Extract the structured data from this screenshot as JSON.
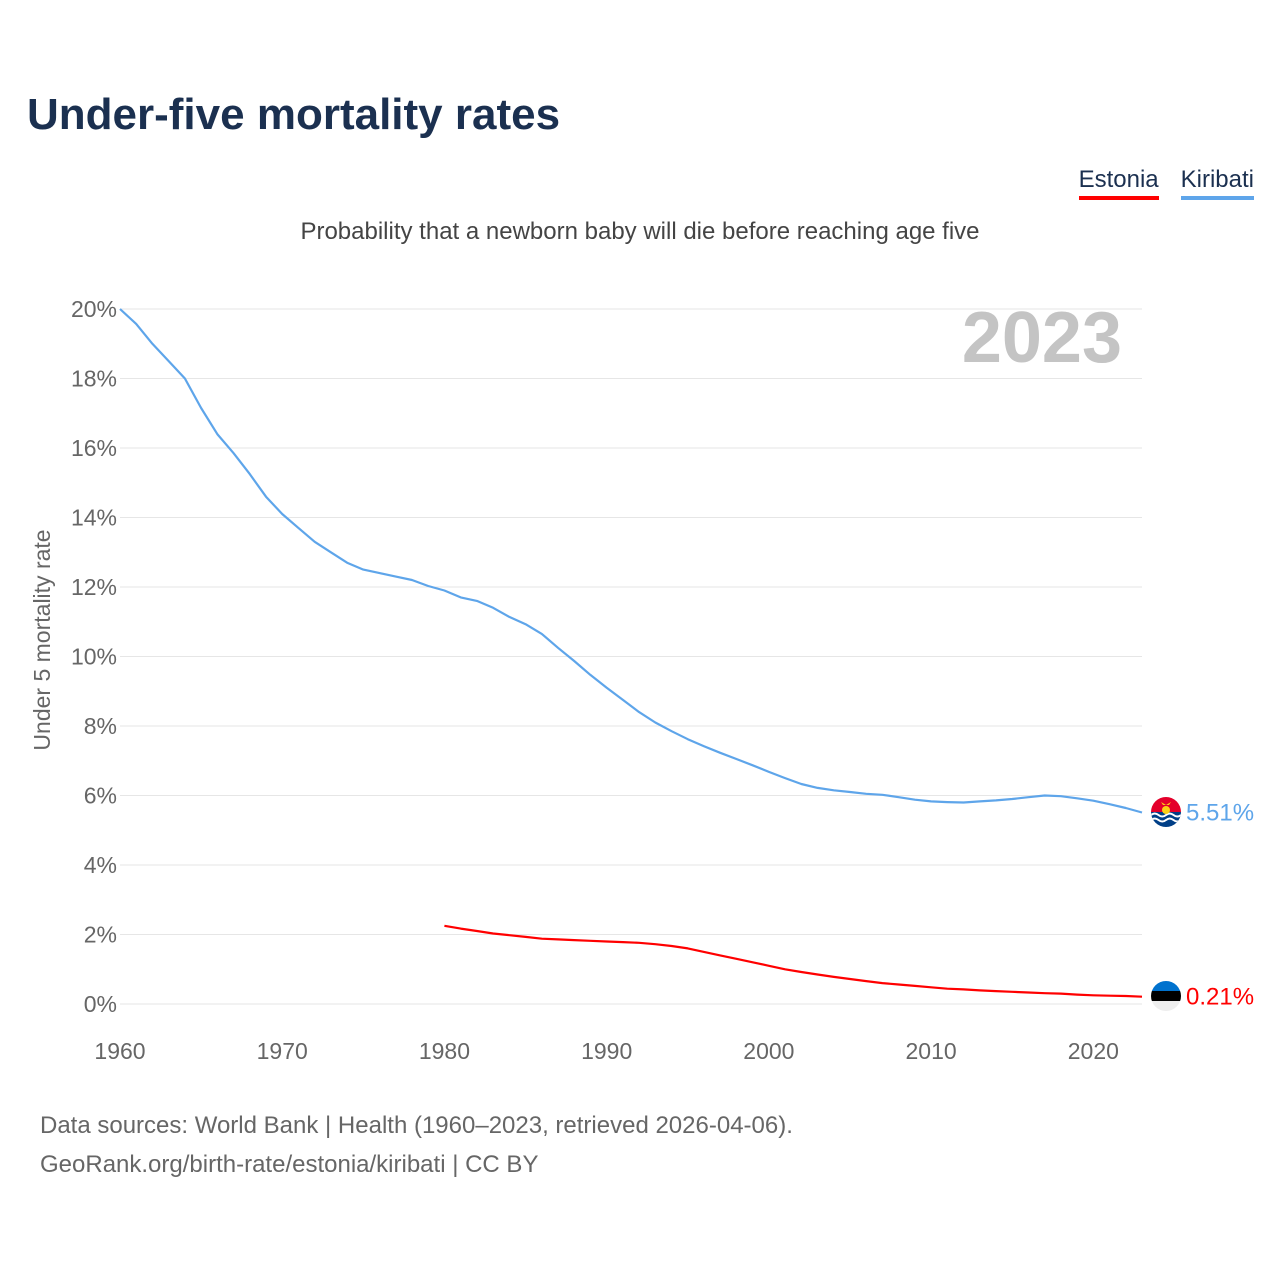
{
  "title": "Under-five mortality rates",
  "subtitle": "Probability that a newborn baby will die before reaching age five",
  "legend": [
    {
      "label": "Estonia",
      "color": "#ff0000"
    },
    {
      "label": "Kiribati",
      "color": "#5ea5ea"
    }
  ],
  "footer": {
    "line1": "Data sources: World Bank | Health (1960–2023, retrieved 2026-04-06).",
    "line2": "GeoRank.org/birth-rate/estonia/kiribati | CC BY"
  },
  "chart_data": {
    "type": "line",
    "title": "Under-five mortality rates",
    "ylabel": "Under 5 mortality rate",
    "xlabel": "",
    "xlim": [
      1960,
      2023
    ],
    "ylim": [
      0,
      20
    ],
    "grid": true,
    "year_watermark": "2023",
    "x_ticks": [
      1960,
      1970,
      1980,
      1990,
      2000,
      2010,
      2020
    ],
    "x_tick_labels": [
      "1960",
      "1970",
      "1980",
      "1990",
      "2000",
      "2010",
      "2020"
    ],
    "y_ticks": [
      0,
      2,
      4,
      6,
      8,
      10,
      12,
      14,
      16,
      18,
      20
    ],
    "y_tick_labels": [
      "0%",
      "2%",
      "4%",
      "6%",
      "8%",
      "10%",
      "12%",
      "14%",
      "16%",
      "18%",
      "20%"
    ],
    "legend_position": "top-right",
    "series": [
      {
        "name": "Kiribati",
        "color": "#5ea5ea",
        "end_label": "5.51%",
        "x_start": 1960,
        "values": [
          20.0,
          19.57,
          19.0,
          18.5,
          18.0,
          17.15,
          16.4,
          15.85,
          15.25,
          14.6,
          14.1,
          13.7,
          13.3,
          13.0,
          12.7,
          12.5,
          12.4,
          12.3,
          12.2,
          12.03,
          11.9,
          11.7,
          11.6,
          11.4,
          11.14,
          10.93,
          10.65,
          10.25,
          9.87,
          9.47,
          9.1,
          8.75,
          8.4,
          8.1,
          7.85,
          7.62,
          7.42,
          7.23,
          7.05,
          6.87,
          6.68,
          6.5,
          6.33,
          6.22,
          6.15,
          6.1,
          6.05,
          6.02,
          5.95,
          5.88,
          5.83,
          5.81,
          5.8,
          5.83,
          5.86,
          5.9,
          5.95,
          6.0,
          5.98,
          5.92,
          5.85,
          5.75,
          5.64,
          5.51
        ]
      },
      {
        "name": "Estonia",
        "color": "#ff0000",
        "end_label": "0.21%",
        "x_start": 1980,
        "values": [
          2.25,
          2.17,
          2.1,
          2.03,
          1.98,
          1.93,
          1.88,
          1.86,
          1.84,
          1.82,
          1.8,
          1.78,
          1.76,
          1.72,
          1.67,
          1.6,
          1.5,
          1.4,
          1.3,
          1.2,
          1.1,
          1.0,
          0.92,
          0.85,
          0.78,
          0.72,
          0.66,
          0.6,
          0.56,
          0.52,
          0.48,
          0.44,
          0.42,
          0.39,
          0.37,
          0.35,
          0.33,
          0.31,
          0.3,
          0.27,
          0.25,
          0.24,
          0.23,
          0.21
        ]
      }
    ]
  }
}
